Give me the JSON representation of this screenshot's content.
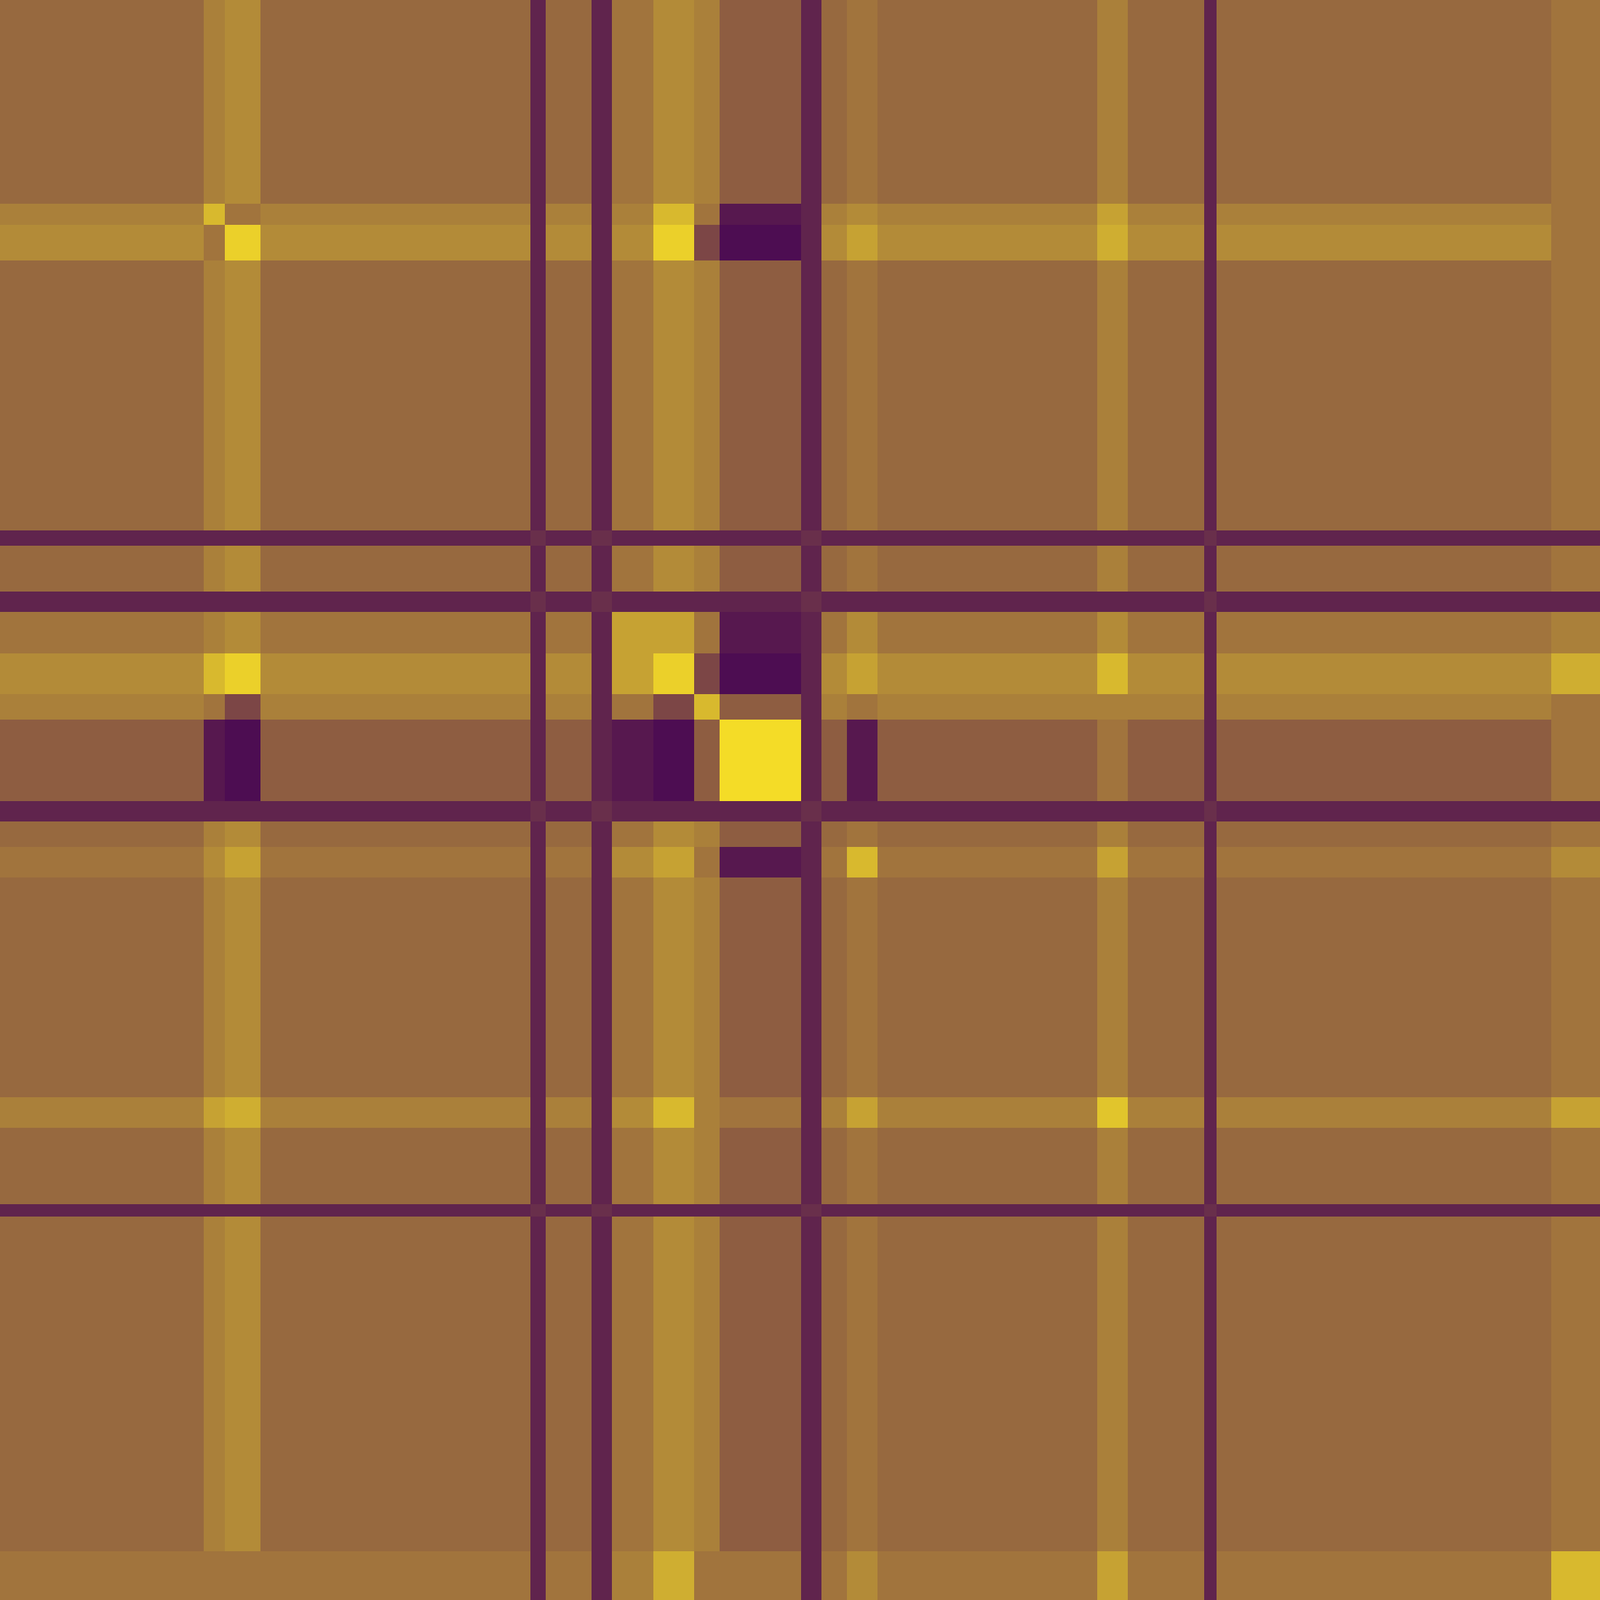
{
  "chart_data": {
    "type": "heatmap",
    "tick_labels": false,
    "xlim": [
      0,
      2199
    ],
    "ylim": [
      0,
      2199
    ],
    "x_edges": [
      0,
      280,
      309,
      358,
      729,
      750,
      813,
      841,
      898,
      954,
      989,
      1101,
      1129,
      1164,
      1206,
      1508,
      1550,
      1655,
      1672,
      2061,
      2132,
      2199
    ],
    "y_edges": [
      0,
      280,
      309,
      358,
      729,
      750,
      813,
      841,
      898,
      954,
      989,
      1101,
      1129,
      1164,
      1206,
      1508,
      1550,
      1655,
      1672,
      2061,
      2132,
      2199
    ],
    "zlim": [
      0,
      1
    ],
    "colors": [
      "#440154",
      "#fde725"
    ],
    "values": [
      [
        0.45,
        0.55,
        0.6,
        0.45,
        0.15,
        0.45,
        0.15,
        0.5,
        0.6,
        0.55,
        0.4,
        0.15,
        0.45,
        0.5,
        0.45,
        0.55,
        0.45,
        0.15,
        0.45,
        0.45,
        0.5
      ],
      [
        0.55,
        0.8,
        0.5,
        0.55,
        0.15,
        0.55,
        0.15,
        0.55,
        0.8,
        0.5,
        0.1,
        0.15,
        0.55,
        0.6,
        0.55,
        0.7,
        0.55,
        0.15,
        0.55,
        0.55,
        0.5
      ],
      [
        0.6,
        0.5,
        0.9,
        0.6,
        0.15,
        0.6,
        0.15,
        0.6,
        0.9,
        0.3,
        0.05,
        0.15,
        0.6,
        0.7,
        0.6,
        0.75,
        0.6,
        0.15,
        0.6,
        0.6,
        0.5
      ],
      [
        0.45,
        0.55,
        0.6,
        0.45,
        0.15,
        0.45,
        0.15,
        0.5,
        0.6,
        0.55,
        0.4,
        0.15,
        0.45,
        0.5,
        0.45,
        0.55,
        0.45,
        0.15,
        0.45,
        0.45,
        0.5
      ],
      [
        0.15,
        0.15,
        0.15,
        0.15,
        0.2,
        0.15,
        0.2,
        0.15,
        0.15,
        0.15,
        0.15,
        0.2,
        0.15,
        0.15,
        0.15,
        0.15,
        0.15,
        0.2,
        0.15,
        0.15,
        0.15
      ],
      [
        0.45,
        0.55,
        0.6,
        0.45,
        0.15,
        0.45,
        0.15,
        0.5,
        0.6,
        0.55,
        0.4,
        0.15,
        0.45,
        0.5,
        0.45,
        0.55,
        0.45,
        0.15,
        0.45,
        0.45,
        0.5
      ],
      [
        0.15,
        0.15,
        0.15,
        0.15,
        0.2,
        0.15,
        0.2,
        0.15,
        0.15,
        0.15,
        0.15,
        0.2,
        0.15,
        0.15,
        0.15,
        0.15,
        0.15,
        0.2,
        0.15,
        0.15,
        0.15
      ],
      [
        0.5,
        0.55,
        0.6,
        0.5,
        0.15,
        0.5,
        0.15,
        0.7,
        0.7,
        0.5,
        0.1,
        0.15,
        0.5,
        0.6,
        0.5,
        0.6,
        0.5,
        0.15,
        0.5,
        0.5,
        0.55
      ],
      [
        0.6,
        0.8,
        0.9,
        0.6,
        0.15,
        0.6,
        0.15,
        0.7,
        0.9,
        0.3,
        0.05,
        0.15,
        0.6,
        0.7,
        0.6,
        0.8,
        0.6,
        0.15,
        0.6,
        0.6,
        0.75
      ],
      [
        0.55,
        0.5,
        0.3,
        0.55,
        0.15,
        0.55,
        0.15,
        0.5,
        0.3,
        0.8,
        0.4,
        0.15,
        0.55,
        0.5,
        0.55,
        0.55,
        0.55,
        0.15,
        0.55,
        0.55,
        0.5
      ],
      [
        0.4,
        0.1,
        0.05,
        0.4,
        0.15,
        0.4,
        0.15,
        0.1,
        0.05,
        0.4,
        0.95,
        0.15,
        0.4,
        0.1,
        0.4,
        0.5,
        0.4,
        0.15,
        0.4,
        0.4,
        0.5
      ],
      [
        0.15,
        0.15,
        0.15,
        0.15,
        0.2,
        0.15,
        0.2,
        0.15,
        0.15,
        0.15,
        0.15,
        0.2,
        0.15,
        0.15,
        0.15,
        0.15,
        0.15,
        0.2,
        0.15,
        0.15,
        0.15
      ],
      [
        0.45,
        0.55,
        0.6,
        0.45,
        0.15,
        0.45,
        0.15,
        0.5,
        0.6,
        0.55,
        0.4,
        0.15,
        0.45,
        0.5,
        0.45,
        0.55,
        0.45,
        0.15,
        0.45,
        0.45,
        0.5
      ],
      [
        0.5,
        0.6,
        0.7,
        0.5,
        0.15,
        0.5,
        0.15,
        0.6,
        0.7,
        0.5,
        0.1,
        0.15,
        0.5,
        0.8,
        0.5,
        0.7,
        0.5,
        0.15,
        0.5,
        0.5,
        0.6
      ],
      [
        0.45,
        0.55,
        0.6,
        0.45,
        0.15,
        0.45,
        0.15,
        0.5,
        0.6,
        0.55,
        0.4,
        0.15,
        0.45,
        0.5,
        0.45,
        0.55,
        0.45,
        0.15,
        0.45,
        0.45,
        0.5
      ],
      [
        0.55,
        0.7,
        0.75,
        0.55,
        0.15,
        0.55,
        0.15,
        0.6,
        0.8,
        0.55,
        0.5,
        0.15,
        0.55,
        0.7,
        0.55,
        0.85,
        0.55,
        0.15,
        0.55,
        0.55,
        0.7
      ],
      [
        0.45,
        0.55,
        0.6,
        0.45,
        0.15,
        0.45,
        0.15,
        0.5,
        0.6,
        0.55,
        0.4,
        0.15,
        0.45,
        0.5,
        0.45,
        0.55,
        0.45,
        0.15,
        0.45,
        0.45,
        0.5
      ],
      [
        0.15,
        0.15,
        0.15,
        0.15,
        0.2,
        0.15,
        0.2,
        0.15,
        0.15,
        0.15,
        0.15,
        0.2,
        0.15,
        0.15,
        0.15,
        0.15,
        0.15,
        0.2,
        0.15,
        0.15,
        0.15
      ],
      [
        0.45,
        0.55,
        0.6,
        0.45,
        0.15,
        0.45,
        0.15,
        0.5,
        0.6,
        0.55,
        0.4,
        0.15,
        0.45,
        0.5,
        0.45,
        0.55,
        0.45,
        0.15,
        0.45,
        0.45,
        0.5
      ],
      [
        0.45,
        0.55,
        0.6,
        0.45,
        0.15,
        0.45,
        0.15,
        0.5,
        0.6,
        0.55,
        0.4,
        0.15,
        0.45,
        0.5,
        0.45,
        0.55,
        0.45,
        0.15,
        0.45,
        0.45,
        0.5
      ],
      [
        0.5,
        0.5,
        0.5,
        0.5,
        0.15,
        0.5,
        0.15,
        0.55,
        0.75,
        0.5,
        0.5,
        0.15,
        0.5,
        0.6,
        0.5,
        0.7,
        0.5,
        0.15,
        0.5,
        0.5,
        0.8
      ]
    ]
  }
}
